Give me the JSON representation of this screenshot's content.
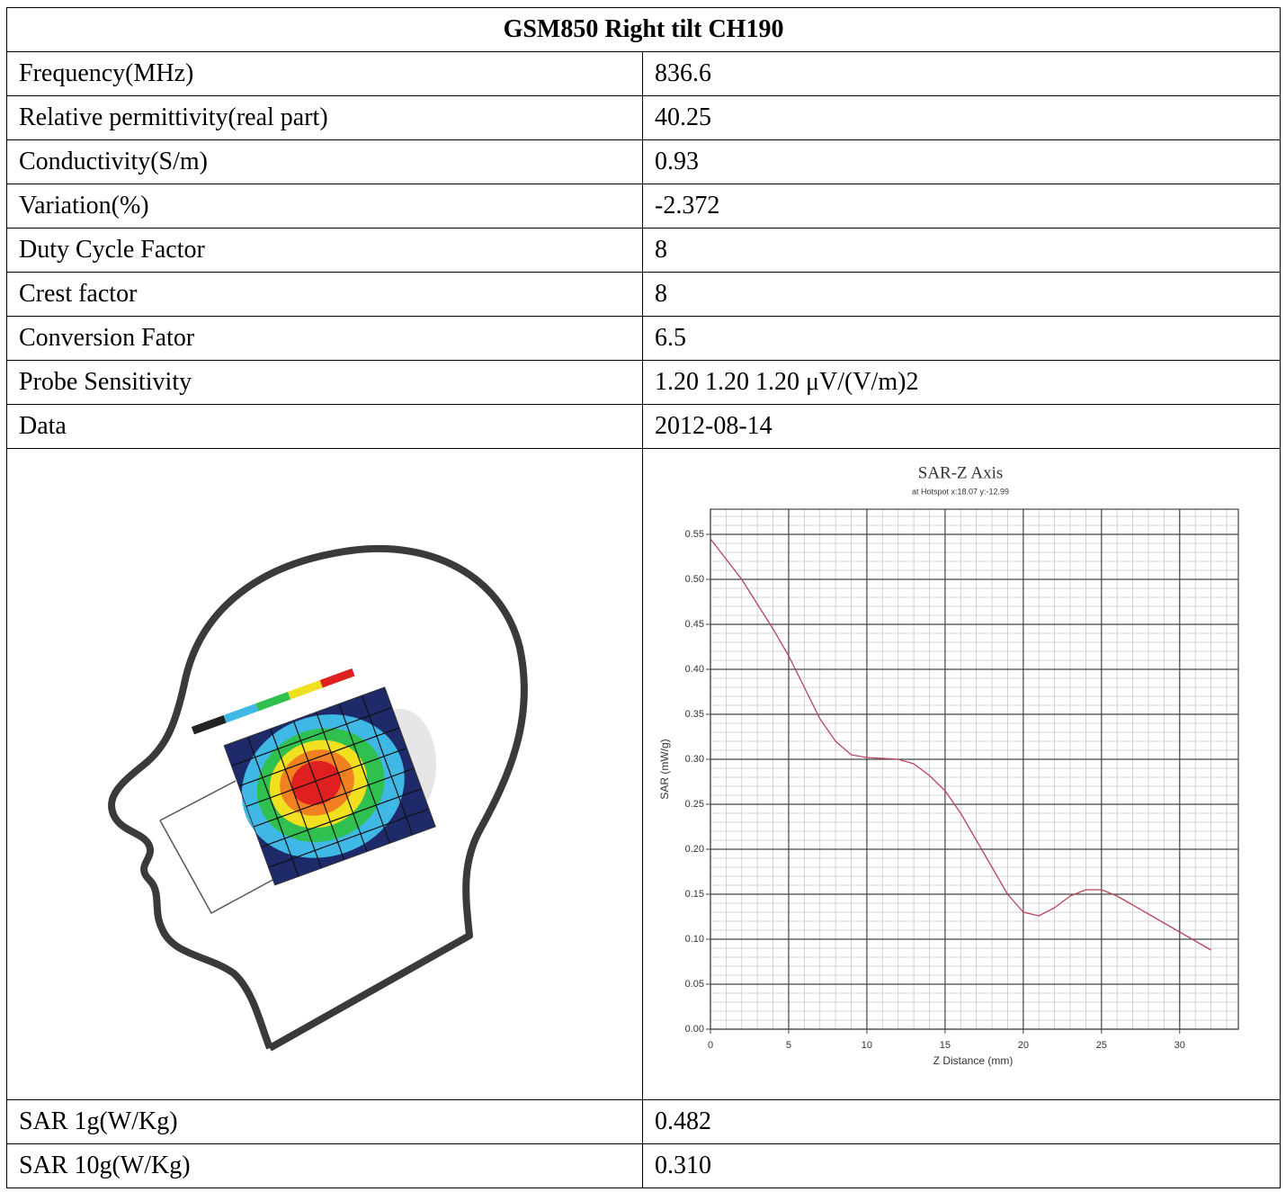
{
  "table": {
    "title": "GSM850 Right tilt CH190",
    "rows": [
      [
        "Frequency(MHz)",
        "836.6"
      ],
      [
        "Relative permittivity(real part)",
        "40.25"
      ],
      [
        "Conductivity(S/m)",
        "0.93"
      ],
      [
        "Variation(%)",
        "-2.372"
      ],
      [
        "Duty Cycle Factor",
        "8"
      ],
      [
        "Crest factor",
        "8"
      ],
      [
        "Conversion Fator",
        "6.5"
      ],
      [
        "Probe Sensitivity",
        "1.20 1.20 1.20  μV/(V/m)2"
      ],
      [
        "Data",
        "2012-08-14"
      ]
    ],
    "footer_rows": [
      [
        "SAR 1g(W/Kg)",
        "0.482"
      ],
      [
        "SAR 10g(W/Kg)",
        "0.310"
      ]
    ]
  },
  "chart_data": {
    "type": "line",
    "title": "SAR-Z Axis",
    "subtitle": "at Hotspot x:18.07 y:-12.99",
    "x_label": "Z Distance (mm)",
    "y_label": "SAR (mW/g)",
    "x": [
      0,
      2,
      4,
      5,
      6,
      7,
      8,
      9,
      10,
      12,
      13,
      14,
      15,
      16,
      17,
      18,
      19,
      20,
      21,
      22,
      23,
      24,
      25,
      26,
      28,
      30,
      32
    ],
    "y": [
      0.545,
      0.5,
      0.445,
      0.415,
      0.38,
      0.345,
      0.32,
      0.305,
      0.302,
      0.3,
      0.295,
      0.282,
      0.265,
      0.24,
      0.21,
      0.18,
      0.15,
      0.13,
      0.126,
      0.135,
      0.148,
      0.155,
      0.155,
      0.148,
      0.128,
      0.108,
      0.088
    ],
    "color": "#b8455a",
    "xlim": [
      0,
      33.75
    ],
    "ylim": [
      0,
      0.578
    ],
    "xticks": [
      0,
      5,
      10,
      15,
      20,
      25,
      30
    ],
    "yticks": [
      {
        "value": 0,
        "label": "0.00"
      },
      {
        "value": 0.05,
        "label": "0.05"
      },
      {
        "value": 0.1,
        "label": "0.10"
      },
      {
        "value": 0.15,
        "label": "0.15"
      },
      {
        "value": 0.2,
        "label": "0.20"
      },
      {
        "value": 0.25,
        "label": "0.25"
      },
      {
        "value": 0.3,
        "label": "0.30"
      },
      {
        "value": 0.35,
        "label": "0.35"
      },
      {
        "value": 0.4,
        "label": "0.40"
      },
      {
        "value": 0.45,
        "label": "0.45"
      },
      {
        "value": 0.5,
        "label": "0.50"
      },
      {
        "value": 0.55,
        "label": "0.55"
      }
    ],
    "grid": true
  }
}
